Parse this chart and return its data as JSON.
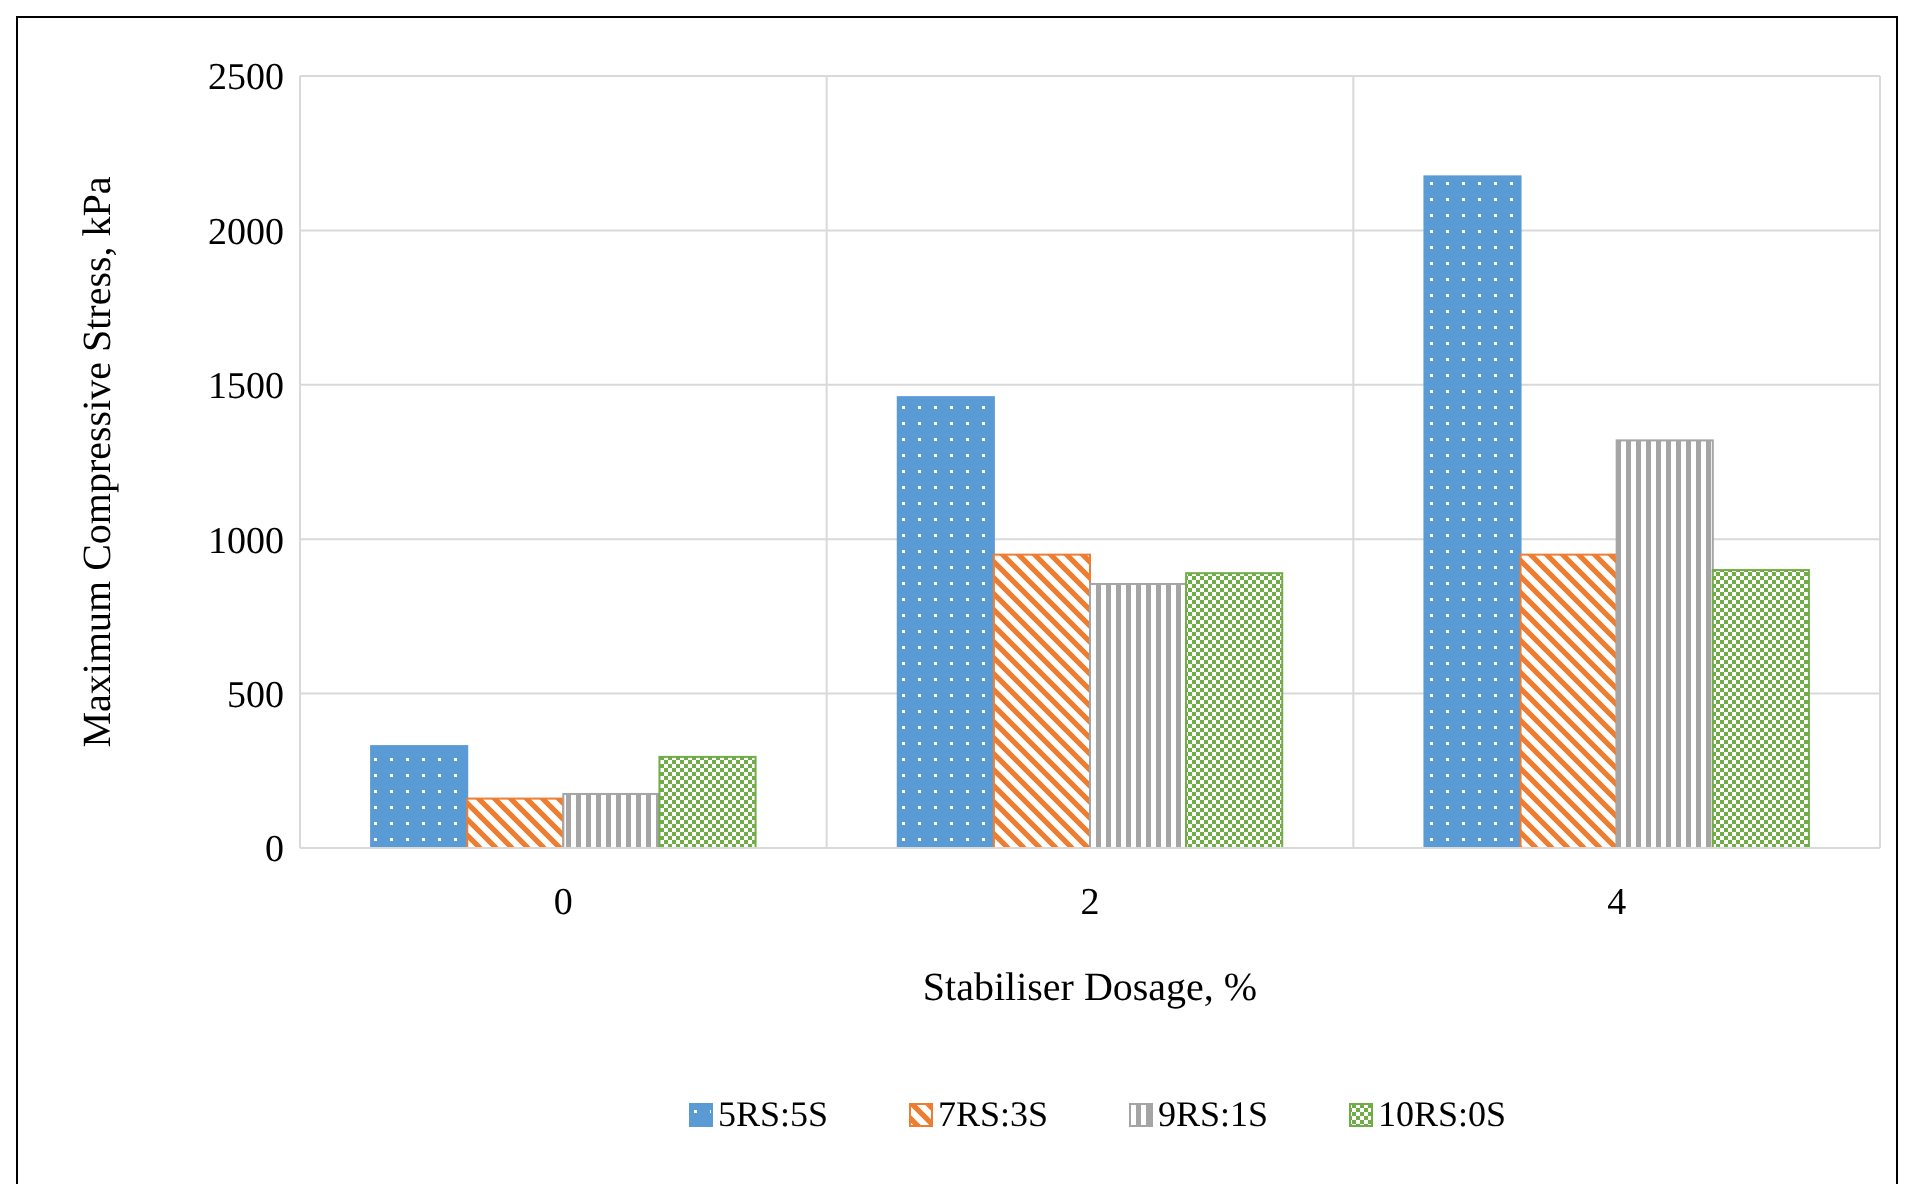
{
  "chart_data": {
    "type": "bar",
    "xlabel": "Stabiliser Dosage, %",
    "ylabel": "Maximum Compressive Stress, kPa",
    "categories": [
      "0",
      "2",
      "4"
    ],
    "series": [
      {
        "name": "5RS:5S",
        "color": "#5b9bd5",
        "values": [
          330,
          1460,
          2175
        ]
      },
      {
        "name": "7RS:3S",
        "color": "#ed7d31",
        "values": [
          160,
          950,
          950
        ]
      },
      {
        "name": "9RS:1S",
        "color": "#a5a5a5",
        "values": [
          175,
          855,
          1320
        ]
      },
      {
        "name": "10RS:0S",
        "color": "#70ad47",
        "values": [
          295,
          890,
          900
        ]
      }
    ],
    "ylim": [
      0,
      2500
    ],
    "yticks": [
      0,
      500,
      1000,
      1500,
      2000,
      2500
    ],
    "grid": true,
    "legend": "bottom"
  }
}
